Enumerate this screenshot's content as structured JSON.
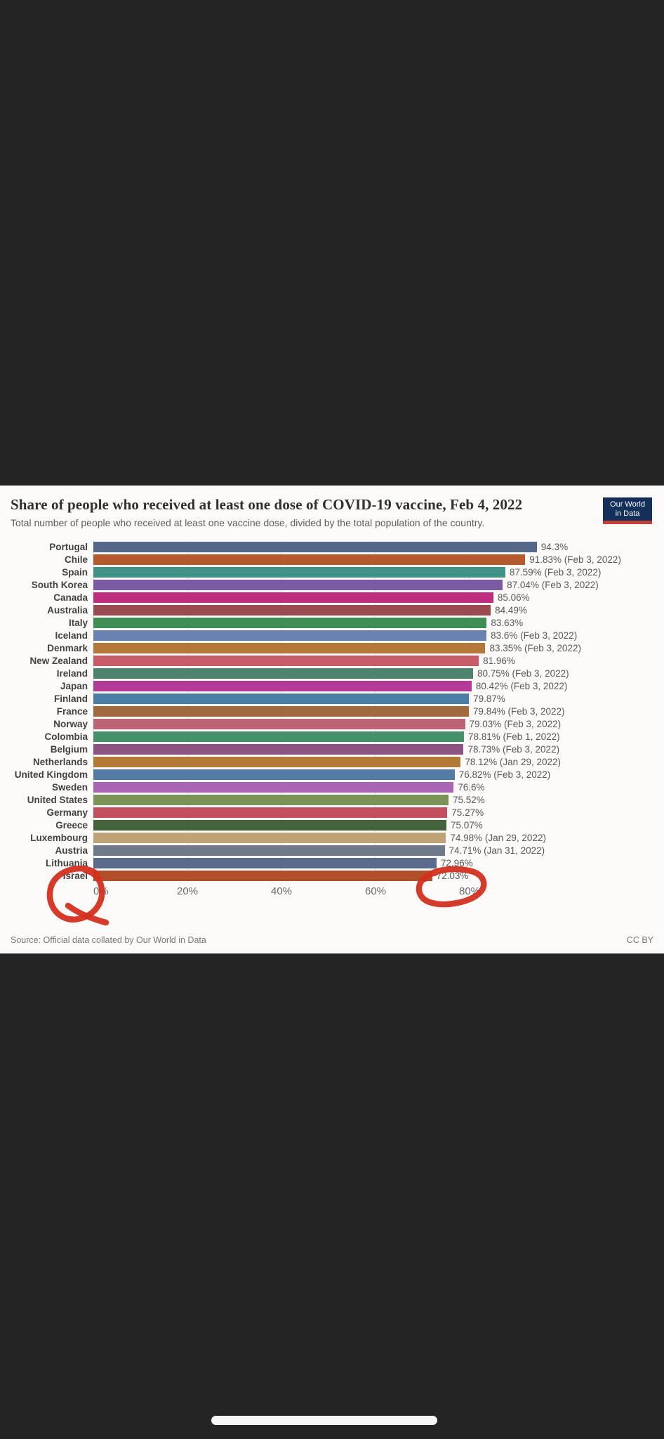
{
  "header": {
    "title": "Share of people who received at least one dose of COVID-19 vaccine, Feb 4, 2022",
    "subtitle": "Total number of people who received at least one vaccine dose, divided by the total population of the country.",
    "logo": {
      "line1": "Our World",
      "line2": "in Data",
      "bg_color": "#14305A",
      "stripe_color": "#BE4034"
    }
  },
  "chart_data": {
    "type": "bar",
    "orientation": "horizontal",
    "title": "Share of people who received at least one dose of COVID-19 vaccine, Feb 4, 2022",
    "categories": [
      "Portugal",
      "Chile",
      "Spain",
      "South Korea",
      "Canada",
      "Australia",
      "Italy",
      "Iceland",
      "Denmark",
      "New Zealand",
      "Ireland",
      "Japan",
      "Finland",
      "France",
      "Norway",
      "Colombia",
      "Belgium",
      "Netherlands",
      "United Kingdom",
      "Sweden",
      "United States",
      "Germany",
      "Greece",
      "Luxembourg",
      "Austria",
      "Lithuania",
      "Israel"
    ],
    "values": [
      94.3,
      91.83,
      87.59,
      87.04,
      85.06,
      84.49,
      83.63,
      83.6,
      83.35,
      81.96,
      80.75,
      80.42,
      79.87,
      79.84,
      79.03,
      78.81,
      78.73,
      78.12,
      76.82,
      76.6,
      75.52,
      75.27,
      75.07,
      74.98,
      74.71,
      72.96,
      72.03
    ],
    "value_labels": [
      "94.3%",
      "91.83% (Feb 3, 2022)",
      "87.59% (Feb 3, 2022)",
      "87.04% (Feb 3, 2022)",
      "85.06%",
      "84.49%",
      "83.63%",
      "83.6% (Feb 3, 2022)",
      "83.35% (Feb 3, 2022)",
      "81.96%",
      "80.75% (Feb 3, 2022)",
      "80.42% (Feb 3, 2022)",
      "79.87%",
      "79.84% (Feb 3, 2022)",
      "79.03% (Feb 3, 2022)",
      "78.81% (Feb 1, 2022)",
      "78.73% (Feb 3, 2022)",
      "78.12% (Jan 29, 2022)",
      "76.82% (Feb 3, 2022)",
      "76.6%",
      "75.52%",
      "75.27%",
      "75.07%",
      "74.98% (Jan 29, 2022)",
      "74.71% (Jan 31, 2022)",
      "72.96%",
      "72.03%"
    ],
    "bar_colors": [
      "#56688A",
      "#B55A2C",
      "#3E9384",
      "#7C5BA5",
      "#BE2D7E",
      "#9C4A52",
      "#3E8E55",
      "#6A82B0",
      "#B5763A",
      "#C75B66",
      "#4E8370",
      "#B13B96",
      "#4A7FA3",
      "#A06A3E",
      "#BC6476",
      "#45916C",
      "#8D5380",
      "#B27A35",
      "#527AA3",
      "#A967B3",
      "#7A9457",
      "#C24F5D",
      "#44633A",
      "#BFA276",
      "#6E7A8A",
      "#5A6A8C",
      "#B14F2A"
    ],
    "x_axis": {
      "tick_labels": [
        "0%",
        "20%",
        "40%",
        "60%",
        "80%"
      ],
      "tick_values": [
        0,
        20,
        40,
        60,
        80
      ],
      "range": [
        0,
        100
      ]
    },
    "grid": true,
    "unit": "%"
  },
  "footer": {
    "source": "Source: Official data collated by Our World in Data",
    "license": "CC BY"
  },
  "annotations": {
    "color": "#D2301F",
    "items": [
      {
        "name": "hand-drawn-circle-israel-label",
        "around": "Israel"
      },
      {
        "name": "hand-drawn-circle-israel-value",
        "around": "72.03%"
      }
    ]
  }
}
